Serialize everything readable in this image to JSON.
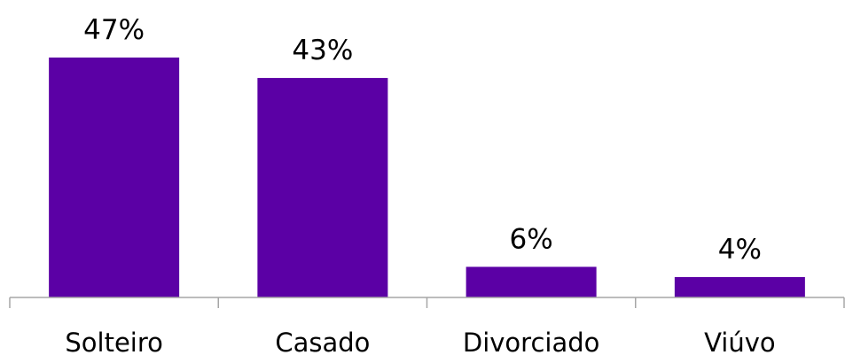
{
  "chart_data": {
    "type": "bar",
    "categories": [
      "Solteiro",
      "Casado",
      "Divorciado",
      "Viúvo"
    ],
    "values": [
      47,
      43,
      6,
      4
    ],
    "data_labels": [
      "47%",
      "43%",
      "6%",
      "4%"
    ],
    "title": "",
    "xlabel": "",
    "ylabel": "",
    "ylim": [
      0,
      47
    ],
    "grid": false,
    "legend": "none",
    "bar_color": "#5b00a5",
    "axis_color": "#a6a6a6"
  }
}
